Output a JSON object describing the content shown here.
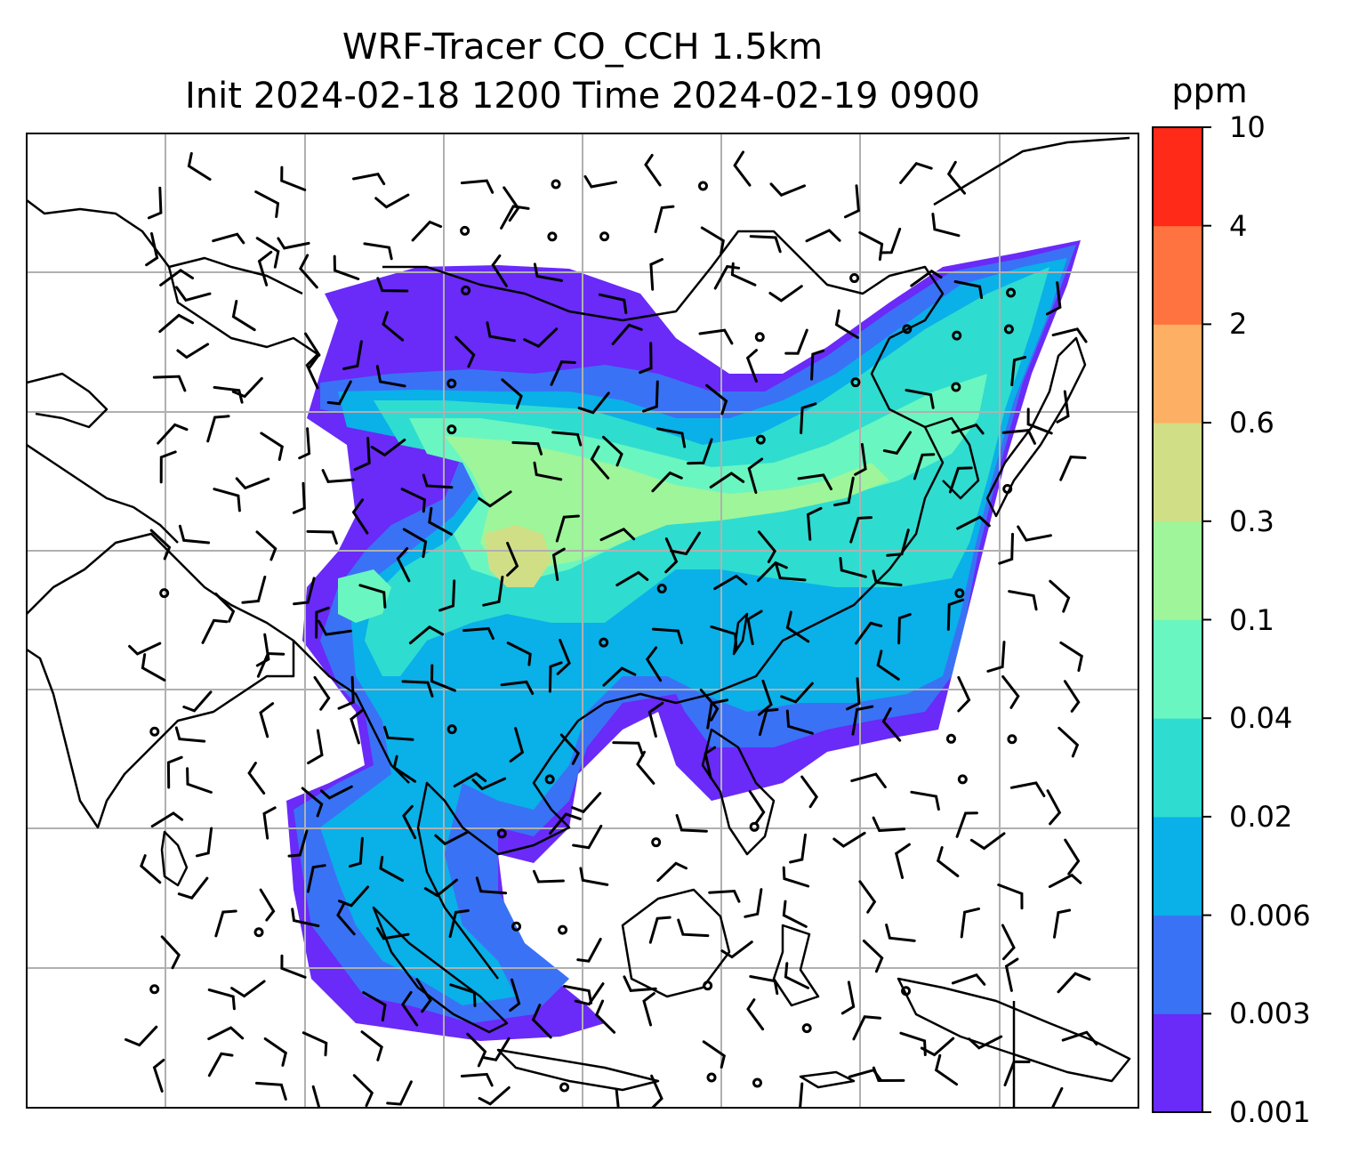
{
  "title": {
    "line1": "WRF-Tracer CO_CCH 1.5km",
    "line2": "Init 2024-02-18 1200 Time 2024-02-19 0900"
  },
  "colorbar": {
    "unit": "ppm",
    "levels": [
      "0.001",
      "0.003",
      "0.006",
      "0.02",
      "0.04",
      "0.1",
      "0.3",
      "0.6",
      "2",
      "4",
      "10"
    ],
    "colors": [
      "#6a2af8",
      "#3a72f5",
      "#0ab0e8",
      "#2fdcd0",
      "#6af6c0",
      "#9ef59a",
      "#d0df86",
      "#fdb064",
      "#ff7340",
      "#ff2a18"
    ]
  },
  "map": {
    "field_colors": {
      "lowest": "#6a2af8",
      "low": "#3a72f5",
      "mid": "#0ab0e8",
      "midhigh": "#2fdcd0",
      "high": "#6af6c0",
      "higher": "#9ef59a",
      "peak": "#d0df86"
    },
    "gridline_color": "#b0b0b0",
    "coastline_color": "#000000",
    "barb_color": "#000000"
  }
}
